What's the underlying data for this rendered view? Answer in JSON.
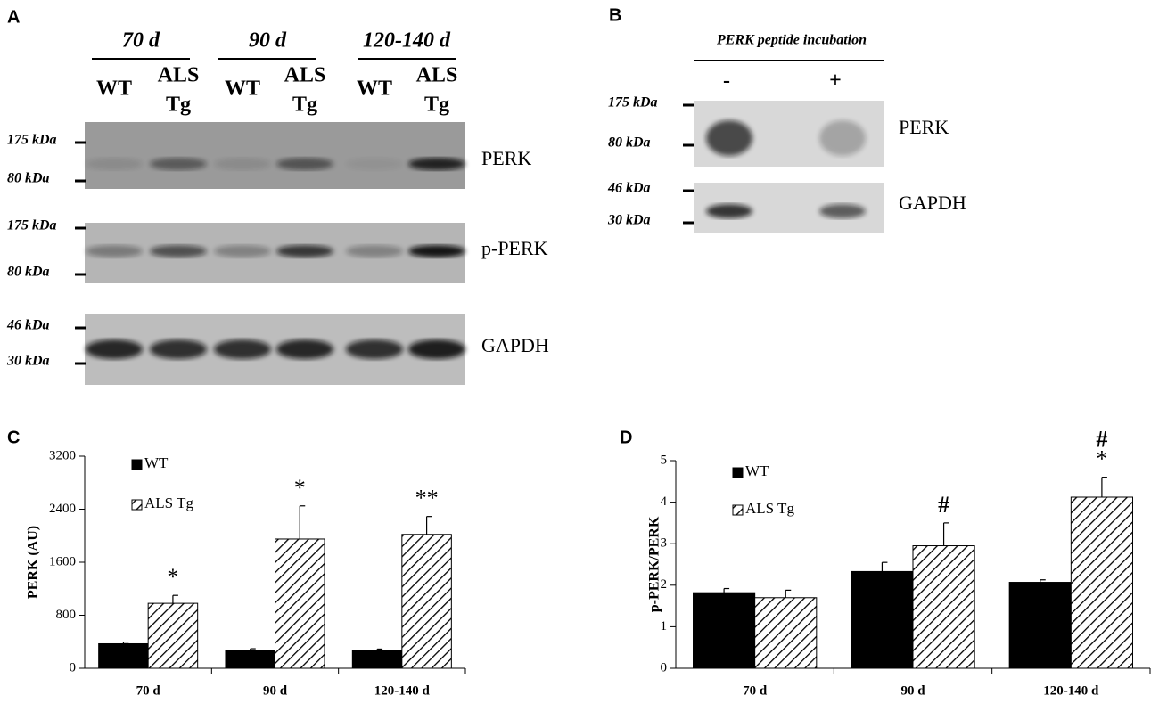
{
  "panel_a": {
    "label": "A",
    "groups": [
      {
        "name": "70 d",
        "lanes": [
          [
            "WT"
          ],
          [
            "ALS",
            "Tg"
          ]
        ]
      },
      {
        "name": "90 d",
        "lanes": [
          [
            "WT"
          ],
          [
            "ALS",
            "Tg"
          ]
        ]
      },
      {
        "name": "120-140 d",
        "lanes": [
          [
            "WT"
          ],
          [
            "ALS",
            "Tg"
          ]
        ]
      }
    ],
    "blots": [
      {
        "name": "PERK",
        "markers": [
          "175 kDa",
          "80 kDa"
        ]
      },
      {
        "name": "p-PERK",
        "markers": [
          "175 kDa",
          "80 kDa"
        ]
      },
      {
        "name": "GAPDH",
        "markers": [
          "46 kDa",
          "30 kDa"
        ]
      }
    ]
  },
  "panel_b": {
    "label": "B",
    "title": "PERK peptide incubation",
    "conditions": [
      "-",
      "+"
    ],
    "blots": [
      {
        "name": "PERK",
        "markers": [
          "175 kDa",
          "80 kDa"
        ]
      },
      {
        "name": "GAPDH",
        "markers": [
          "46 kDa",
          "30 kDa"
        ]
      }
    ]
  },
  "chart_data": [
    {
      "type": "bar",
      "panel_label": "C",
      "ylabel": "PERK (AU)",
      "categories": [
        "70 d",
        "90 d",
        "120-140 d"
      ],
      "series": [
        {
          "name": "WT",
          "color": "#000000",
          "hatch": false,
          "values": [
            370,
            270,
            270
          ],
          "errors": [
            25,
            25,
            20
          ]
        },
        {
          "name": "ALS Tg",
          "color": "#000000",
          "hatch": true,
          "values": [
            980,
            1950,
            2020
          ],
          "errors": [
            120,
            500,
            270
          ],
          "annotations": [
            [
              "*"
            ],
            [
              "*"
            ],
            [
              "**"
            ]
          ]
        }
      ],
      "ylim": [
        0,
        3200
      ],
      "yticks": [
        0,
        800,
        1600,
        2400,
        3200
      ],
      "legend": "upper left"
    },
    {
      "type": "bar",
      "panel_label": "D",
      "ylabel": "p-PERK/PERK",
      "categories": [
        "70 d",
        "90 d",
        "120-140 d"
      ],
      "series": [
        {
          "name": "WT",
          "color": "#000000",
          "hatch": false,
          "values": [
            1.82,
            2.33,
            2.07
          ],
          "errors": [
            0.1,
            0.22,
            0.06
          ]
        },
        {
          "name": "ALS Tg",
          "color": "#000000",
          "hatch": true,
          "values": [
            1.7,
            2.95,
            4.12
          ],
          "errors": [
            0.18,
            0.55,
            0.48
          ],
          "annotations": [
            null,
            [
              "#"
            ],
            [
              "#",
              "*"
            ]
          ]
        }
      ],
      "ylim": [
        0,
        5
      ],
      "yticks": [
        0,
        1,
        2,
        3,
        4,
        5
      ],
      "legend": "upper left"
    }
  ]
}
